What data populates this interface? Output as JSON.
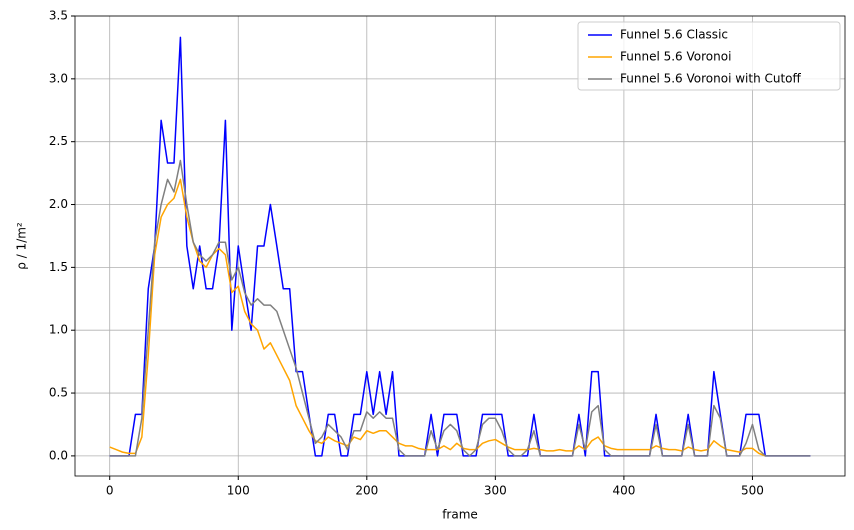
{
  "chart_data": {
    "type": "line",
    "xlabel": "frame",
    "ylabel": "ρ / 1/m²",
    "x": [
      0,
      5,
      10,
      15,
      20,
      25,
      30,
      35,
      40,
      45,
      50,
      55,
      60,
      65,
      70,
      75,
      80,
      85,
      90,
      95,
      100,
      105,
      110,
      115,
      120,
      125,
      130,
      135,
      140,
      145,
      150,
      155,
      160,
      165,
      170,
      175,
      180,
      185,
      190,
      195,
      200,
      205,
      210,
      215,
      220,
      225,
      230,
      235,
      240,
      245,
      250,
      255,
      260,
      265,
      270,
      275,
      280,
      285,
      290,
      295,
      300,
      305,
      310,
      315,
      320,
      325,
      330,
      335,
      340,
      345,
      350,
      355,
      360,
      365,
      370,
      375,
      380,
      385,
      390,
      395,
      400,
      405,
      410,
      415,
      420,
      425,
      430,
      435,
      440,
      445,
      450,
      455,
      460,
      465,
      470,
      475,
      480,
      485,
      490,
      495,
      500,
      505,
      510,
      515,
      520,
      525,
      530,
      535,
      540,
      545
    ],
    "series": [
      {
        "name": "Funnel 5.6 Classic",
        "color": "#0000ff",
        "values": [
          0,
          0,
          0,
          0,
          0.33,
          0.33,
          1.33,
          1.67,
          2.67,
          2.33,
          2.33,
          3.33,
          1.67,
          1.33,
          1.67,
          1.33,
          1.33,
          1.67,
          2.67,
          1.0,
          1.67,
          1.33,
          1.0,
          1.67,
          1.67,
          2.0,
          1.67,
          1.33,
          1.33,
          0.67,
          0.67,
          0.33,
          0,
          0,
          0.33,
          0.33,
          0,
          0,
          0.33,
          0.33,
          0.67,
          0.33,
          0.67,
          0.33,
          0.67,
          0,
          0,
          0,
          0,
          0,
          0.33,
          0,
          0.33,
          0.33,
          0.33,
          0,
          0,
          0,
          0.33,
          0.33,
          0.33,
          0.33,
          0,
          0,
          0,
          0,
          0.33,
          0,
          0,
          0,
          0,
          0,
          0,
          0.33,
          0,
          0.67,
          0.67,
          0,
          0,
          0,
          0,
          0,
          0,
          0,
          0,
          0.33,
          0,
          0,
          0,
          0,
          0.33,
          0,
          0,
          0,
          0.67,
          0.33,
          0,
          0,
          0,
          0.33,
          0.33,
          0.33,
          0,
          0,
          0,
          0,
          0,
          0,
          0,
          0
        ]
      },
      {
        "name": "Funnel 5.6 Voronoi",
        "color": "#ffa500",
        "values": [
          0.07,
          0.05,
          0.03,
          0.02,
          0.02,
          0.15,
          0.8,
          1.6,
          1.9,
          2.0,
          2.05,
          2.2,
          1.9,
          1.7,
          1.55,
          1.5,
          1.6,
          1.65,
          1.6,
          1.3,
          1.35,
          1.15,
          1.05,
          1.0,
          0.85,
          0.9,
          0.8,
          0.7,
          0.6,
          0.4,
          0.3,
          0.2,
          0.12,
          0.1,
          0.15,
          0.12,
          0.1,
          0.08,
          0.15,
          0.13,
          0.2,
          0.18,
          0.2,
          0.2,
          0.15,
          0.1,
          0.08,
          0.08,
          0.06,
          0.05,
          0.05,
          0.05,
          0.08,
          0.05,
          0.1,
          0.06,
          0.05,
          0.05,
          0.1,
          0.12,
          0.13,
          0.1,
          0.07,
          0.05,
          0.05,
          0.05,
          0.06,
          0.05,
          0.04,
          0.04,
          0.05,
          0.04,
          0.04,
          0.08,
          0.05,
          0.12,
          0.15,
          0.08,
          0.06,
          0.05,
          0.05,
          0.05,
          0.05,
          0.05,
          0.05,
          0.08,
          0.06,
          0.05,
          0.05,
          0.04,
          0.07,
          0.05,
          0.04,
          0.05,
          0.12,
          0.08,
          0.05,
          0.04,
          0.03,
          0.06,
          0.06,
          0.02,
          0.0,
          null,
          null,
          null,
          null,
          null,
          null,
          null
        ]
      },
      {
        "name": "Funnel 5.6 Voronoi with Cutoff",
        "color": "#808080",
        "values": [
          0,
          0,
          0,
          0,
          0,
          0.3,
          1.0,
          1.7,
          2.0,
          2.2,
          2.1,
          2.35,
          2.0,
          1.7,
          1.6,
          1.55,
          1.6,
          1.7,
          1.7,
          1.4,
          1.5,
          1.3,
          1.2,
          1.25,
          1.2,
          1.2,
          1.15,
          1.0,
          0.85,
          0.7,
          0.5,
          0.3,
          0.1,
          0.15,
          0.25,
          0.2,
          0.15,
          0.05,
          0.2,
          0.2,
          0.35,
          0.3,
          0.35,
          0.3,
          0.3,
          0.05,
          0,
          0,
          0,
          0,
          0.2,
          0.05,
          0.2,
          0.25,
          0.2,
          0.05,
          0,
          0.05,
          0.25,
          0.3,
          0.3,
          0.2,
          0.05,
          0,
          0,
          0.05,
          0.2,
          0,
          0,
          0,
          0,
          0,
          0,
          0.25,
          0.05,
          0.35,
          0.4,
          0.05,
          0,
          0,
          0,
          0,
          0,
          0,
          0,
          0.25,
          0,
          0,
          0,
          0,
          0.25,
          0,
          0,
          0,
          0.4,
          0.3,
          0,
          0,
          0,
          0.1,
          0.25,
          0.05,
          0,
          0,
          0,
          0,
          0,
          0,
          0,
          0
        ]
      }
    ],
    "xlim": [
      -27,
      572
    ],
    "ylim": [
      -0.16,
      3.5
    ],
    "xticks": [
      0,
      100,
      200,
      300,
      400,
      500
    ],
    "yticks": [
      {
        "value": 0,
        "label": "0.0"
      },
      {
        "value": 0.5,
        "label": "0.5"
      },
      {
        "value": 1,
        "label": "1.0"
      },
      {
        "value": 1.5,
        "label": "1.5"
      },
      {
        "value": 2,
        "label": "2.0"
      },
      {
        "value": 2.5,
        "label": "2.5"
      },
      {
        "value": 3,
        "label": "3.0"
      },
      {
        "value": 3.5,
        "label": "3.5"
      }
    ],
    "grid": true,
    "legend": "upper right"
  }
}
